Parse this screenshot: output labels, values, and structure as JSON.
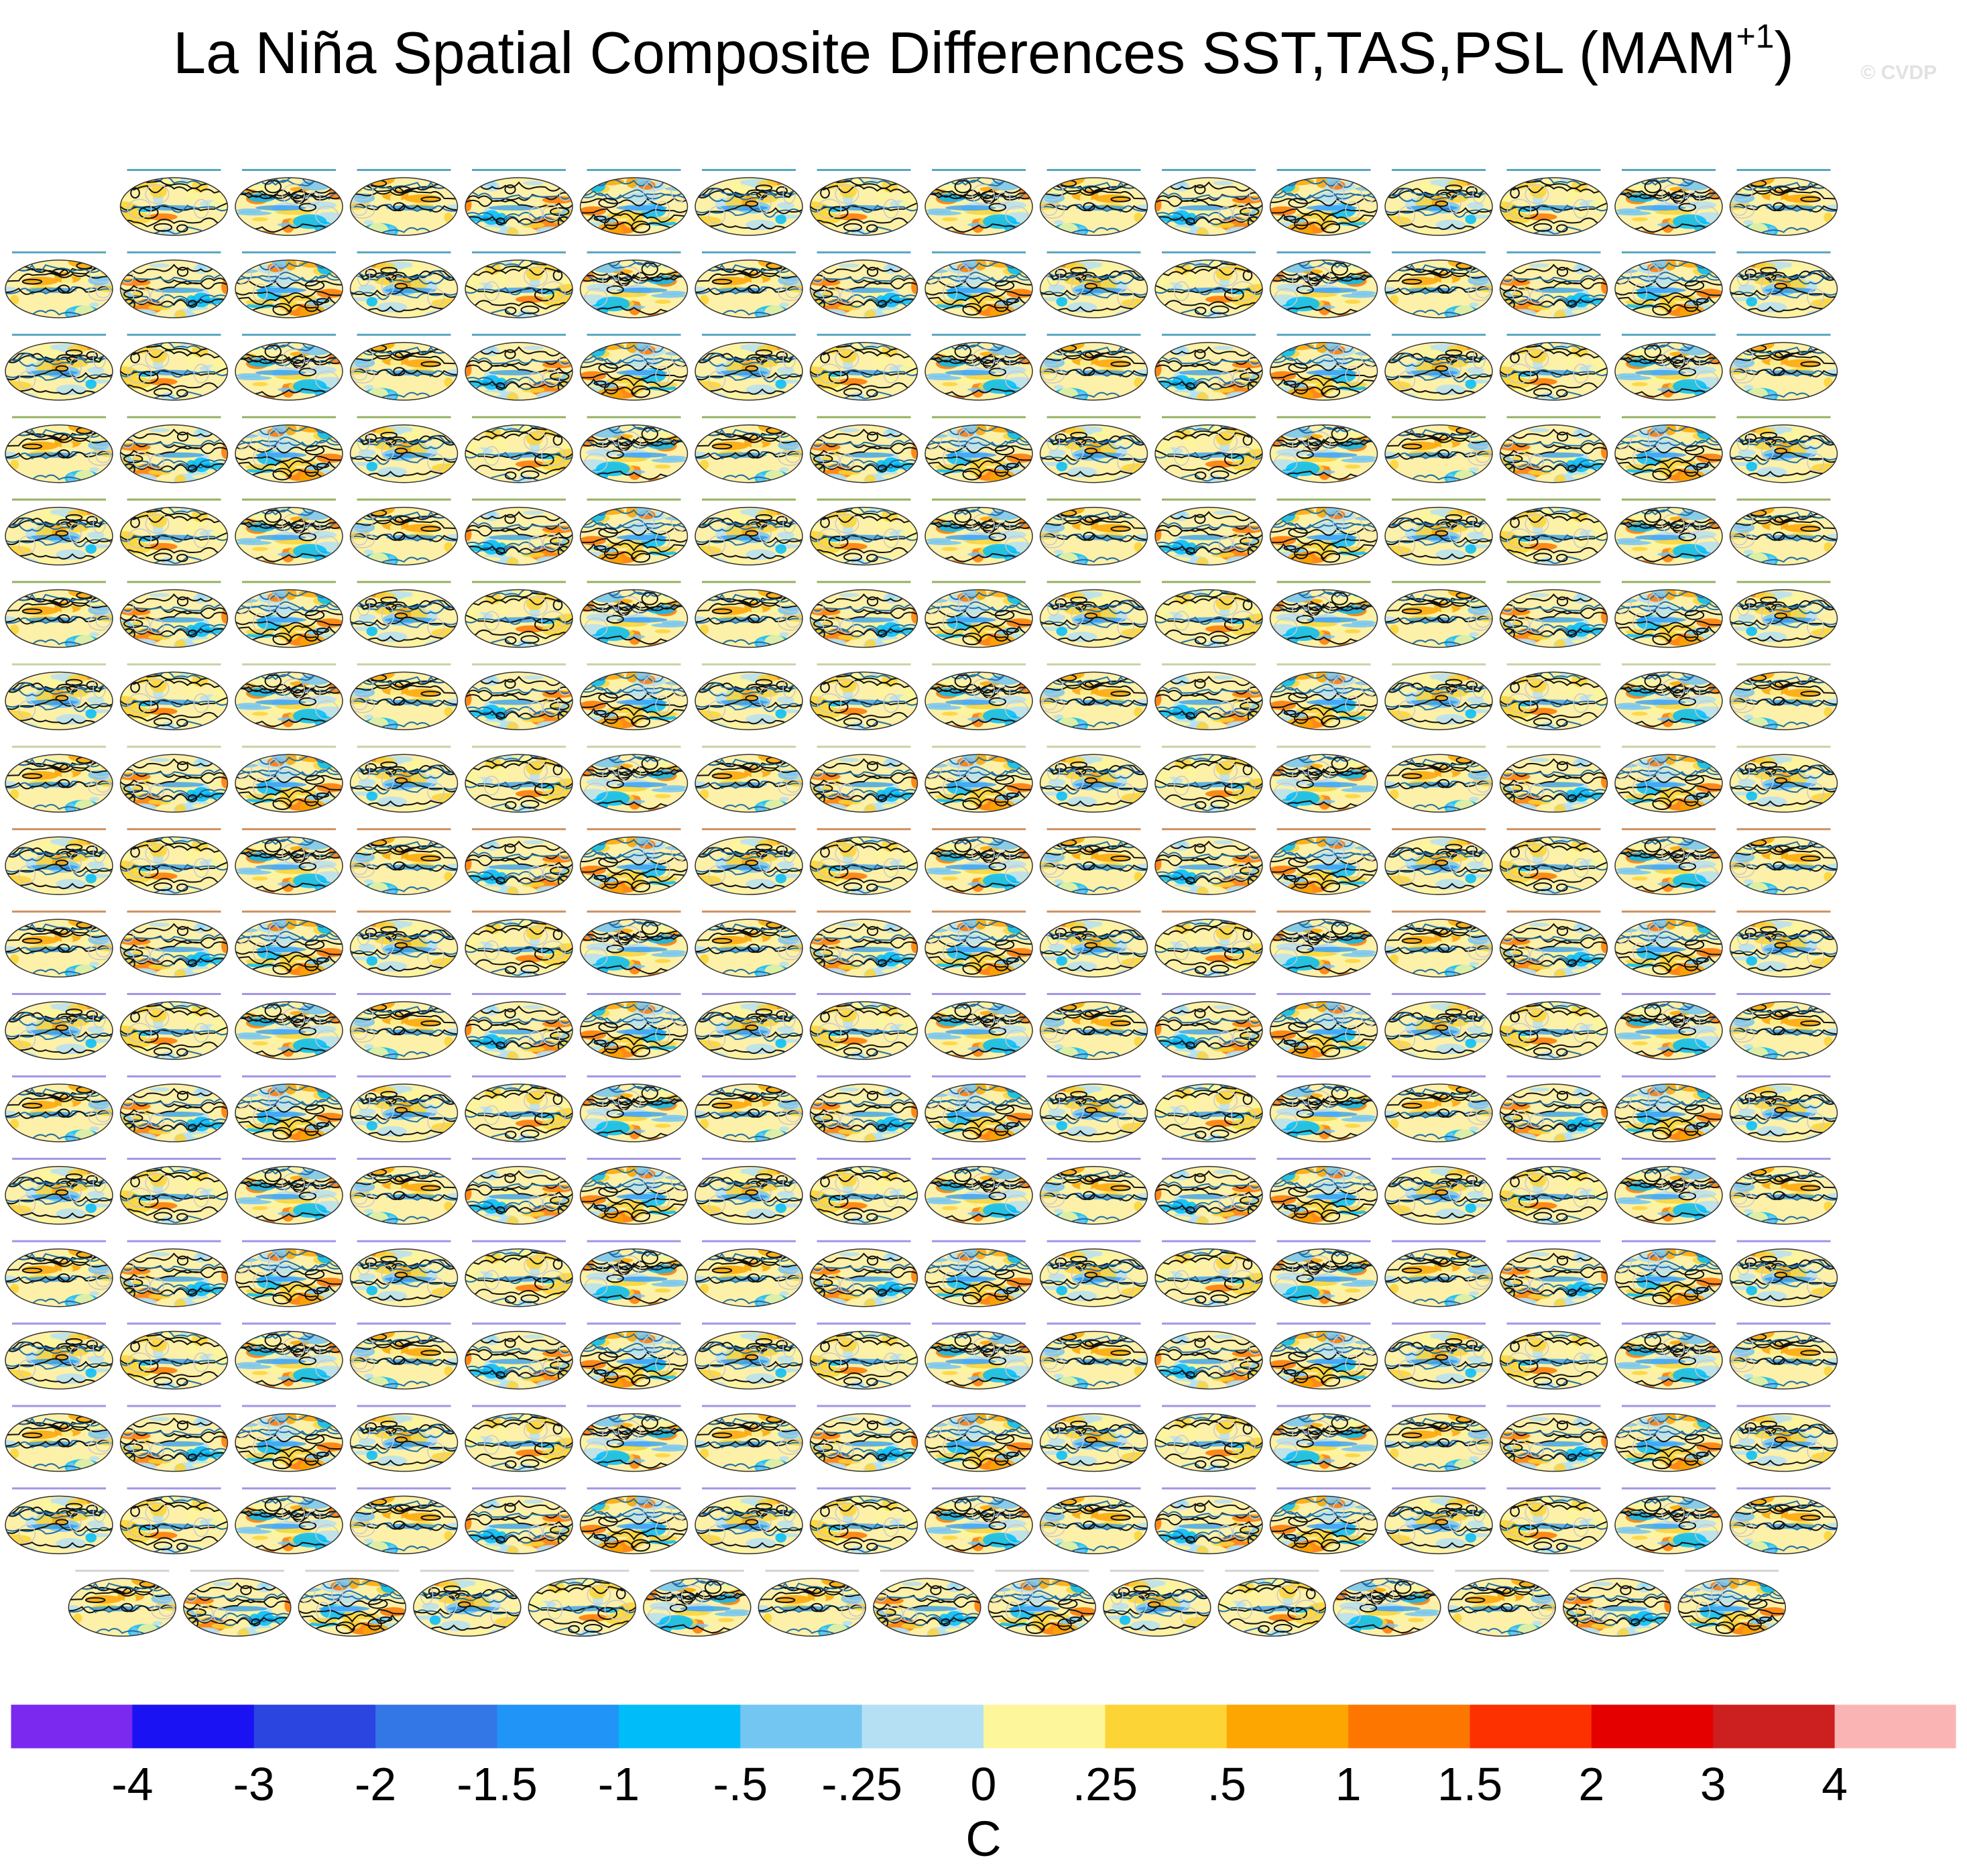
{
  "title": {
    "main": "La Niña Spatial Composite Differences SST,TAS,PSL (MAM",
    "superscript": "+1",
    "close": ")"
  },
  "watermark": "© CVDP",
  "chart_data": {
    "type": "heatmap",
    "description_note": "Grid of global map panels (Hammer/oval projection) showing composite differences; filled colors = SST/TAS difference (C), contours = PSL",
    "panel_rows": [
      {
        "columns": [
          "c1",
          "c2",
          "c3",
          "c4",
          "c5",
          "c6",
          "c7",
          "c8",
          "c9",
          "c10",
          "c11",
          "c12",
          "c13",
          "c14",
          "c15"
        ],
        "offset": "right"
      },
      {
        "columns": [
          "c0",
          "c1",
          "c2",
          "c3",
          "c4",
          "c5",
          "c6",
          "c7",
          "c8",
          "c9",
          "c10",
          "c11",
          "c12",
          "c13",
          "c14",
          "c15"
        ]
      },
      {
        "columns": [
          "c0",
          "c1",
          "c2",
          "c3",
          "c4",
          "c5",
          "c6",
          "c7",
          "c8",
          "c9",
          "c10",
          "c11",
          "c12",
          "c13",
          "c14",
          "c15"
        ]
      },
      {
        "columns": [
          "c0",
          "c1",
          "c2",
          "c3",
          "c4",
          "c5",
          "c6",
          "c7",
          "c8",
          "c9",
          "c10",
          "c11",
          "c12",
          "c13",
          "c14",
          "c15"
        ]
      },
      {
        "columns": [
          "c0",
          "c1",
          "c2",
          "c3",
          "c4",
          "c5",
          "c6",
          "c7",
          "c8",
          "c9",
          "c10",
          "c11",
          "c12",
          "c13",
          "c14",
          "c15"
        ]
      },
      {
        "columns": [
          "c0",
          "c1",
          "c2",
          "c3",
          "c4",
          "c5",
          "c6",
          "c7",
          "c8",
          "c9",
          "c10",
          "c11",
          "c12",
          "c13",
          "c14",
          "c15"
        ]
      },
      {
        "columns": [
          "c0",
          "c1",
          "c2",
          "c3",
          "c4",
          "c5",
          "c6",
          "c7",
          "c8",
          "c9",
          "c10",
          "c11",
          "c12",
          "c13",
          "c14",
          "c15"
        ]
      },
      {
        "columns": [
          "c0",
          "c1",
          "c2",
          "c3",
          "c4",
          "c5",
          "c6",
          "c7",
          "c8",
          "c9",
          "c10",
          "c11",
          "c12",
          "c13",
          "c14",
          "c15"
        ]
      },
      {
        "columns": [
          "c0",
          "c1",
          "c2",
          "c3",
          "c4",
          "c5",
          "c6",
          "c7",
          "c8",
          "c9",
          "c10",
          "c11",
          "c12",
          "c13",
          "c14",
          "c15"
        ]
      },
      {
        "columns": [
          "c0",
          "c1",
          "c2",
          "c3",
          "c4",
          "c5",
          "c6",
          "c7",
          "c8",
          "c9",
          "c10",
          "c11",
          "c12",
          "c13",
          "c14",
          "c15"
        ]
      },
      {
        "columns": [
          "c0",
          "c1",
          "c2",
          "c3",
          "c4",
          "c5",
          "c6",
          "c7",
          "c8",
          "c9",
          "c10",
          "c11",
          "c12",
          "c13",
          "c14",
          "c15"
        ]
      },
      {
        "columns": [
          "c0",
          "c1",
          "c2",
          "c3",
          "c4",
          "c5",
          "c6",
          "c7",
          "c8",
          "c9",
          "c10",
          "c11",
          "c12",
          "c13",
          "c14",
          "c15"
        ]
      },
      {
        "columns": [
          "c0",
          "c1",
          "c2",
          "c3",
          "c4",
          "c5",
          "c6",
          "c7",
          "c8",
          "c9",
          "c10",
          "c11",
          "c12",
          "c13",
          "c14",
          "c15"
        ]
      },
      {
        "columns": [
          "c0",
          "c1",
          "c2",
          "c3",
          "c4",
          "c5",
          "c6",
          "c7",
          "c8",
          "c9",
          "c10",
          "c11",
          "c12",
          "c13",
          "c14",
          "c15"
        ]
      },
      {
        "columns": [
          "c0",
          "c1",
          "c2",
          "c3",
          "c4",
          "c5",
          "c6",
          "c7",
          "c8",
          "c9",
          "c10",
          "c11",
          "c12",
          "c13",
          "c14",
          "c15"
        ]
      },
      {
        "columns": [
          "c0",
          "c1",
          "c2",
          "c3",
          "c4",
          "c5",
          "c6",
          "c7",
          "c8",
          "c9",
          "c10",
          "c11",
          "c12",
          "c13",
          "c14",
          "c15"
        ]
      },
      {
        "columns": [
          "c0",
          "c1",
          "c2",
          "c3",
          "c4",
          "c5",
          "c6",
          "c7",
          "c8",
          "c9",
          "c10",
          "c11",
          "c12",
          "c13",
          "c14",
          "c15"
        ]
      },
      {
        "columns": [
          "c0",
          "c1",
          "c2",
          "c3",
          "c4",
          "c5",
          "c6",
          "c7",
          "c8",
          "c9",
          "c10",
          "c11",
          "c12",
          "c13",
          "c14"
        ],
        "offset": "centered"
      }
    ],
    "colorbar": {
      "colors": [
        "#7b28ef",
        "#1a12f2",
        "#2a45e0",
        "#3376e6",
        "#2094f7",
        "#00bdf9",
        "#74c6f2",
        "#b5e0f3",
        "#fdf69b",
        "#fdd435",
        "#fda500",
        "#fd7700",
        "#fd3000",
        "#e50000",
        "#cc1f1f",
        "#fbb4b4"
      ],
      "tick_labels": [
        "-4",
        "-3",
        "-2",
        "-1.5",
        "-1",
        "-.5",
        "-.25",
        "0",
        ".25",
        ".5",
        "1",
        "1.5",
        "2",
        "3",
        "4"
      ],
      "units": "C"
    }
  }
}
